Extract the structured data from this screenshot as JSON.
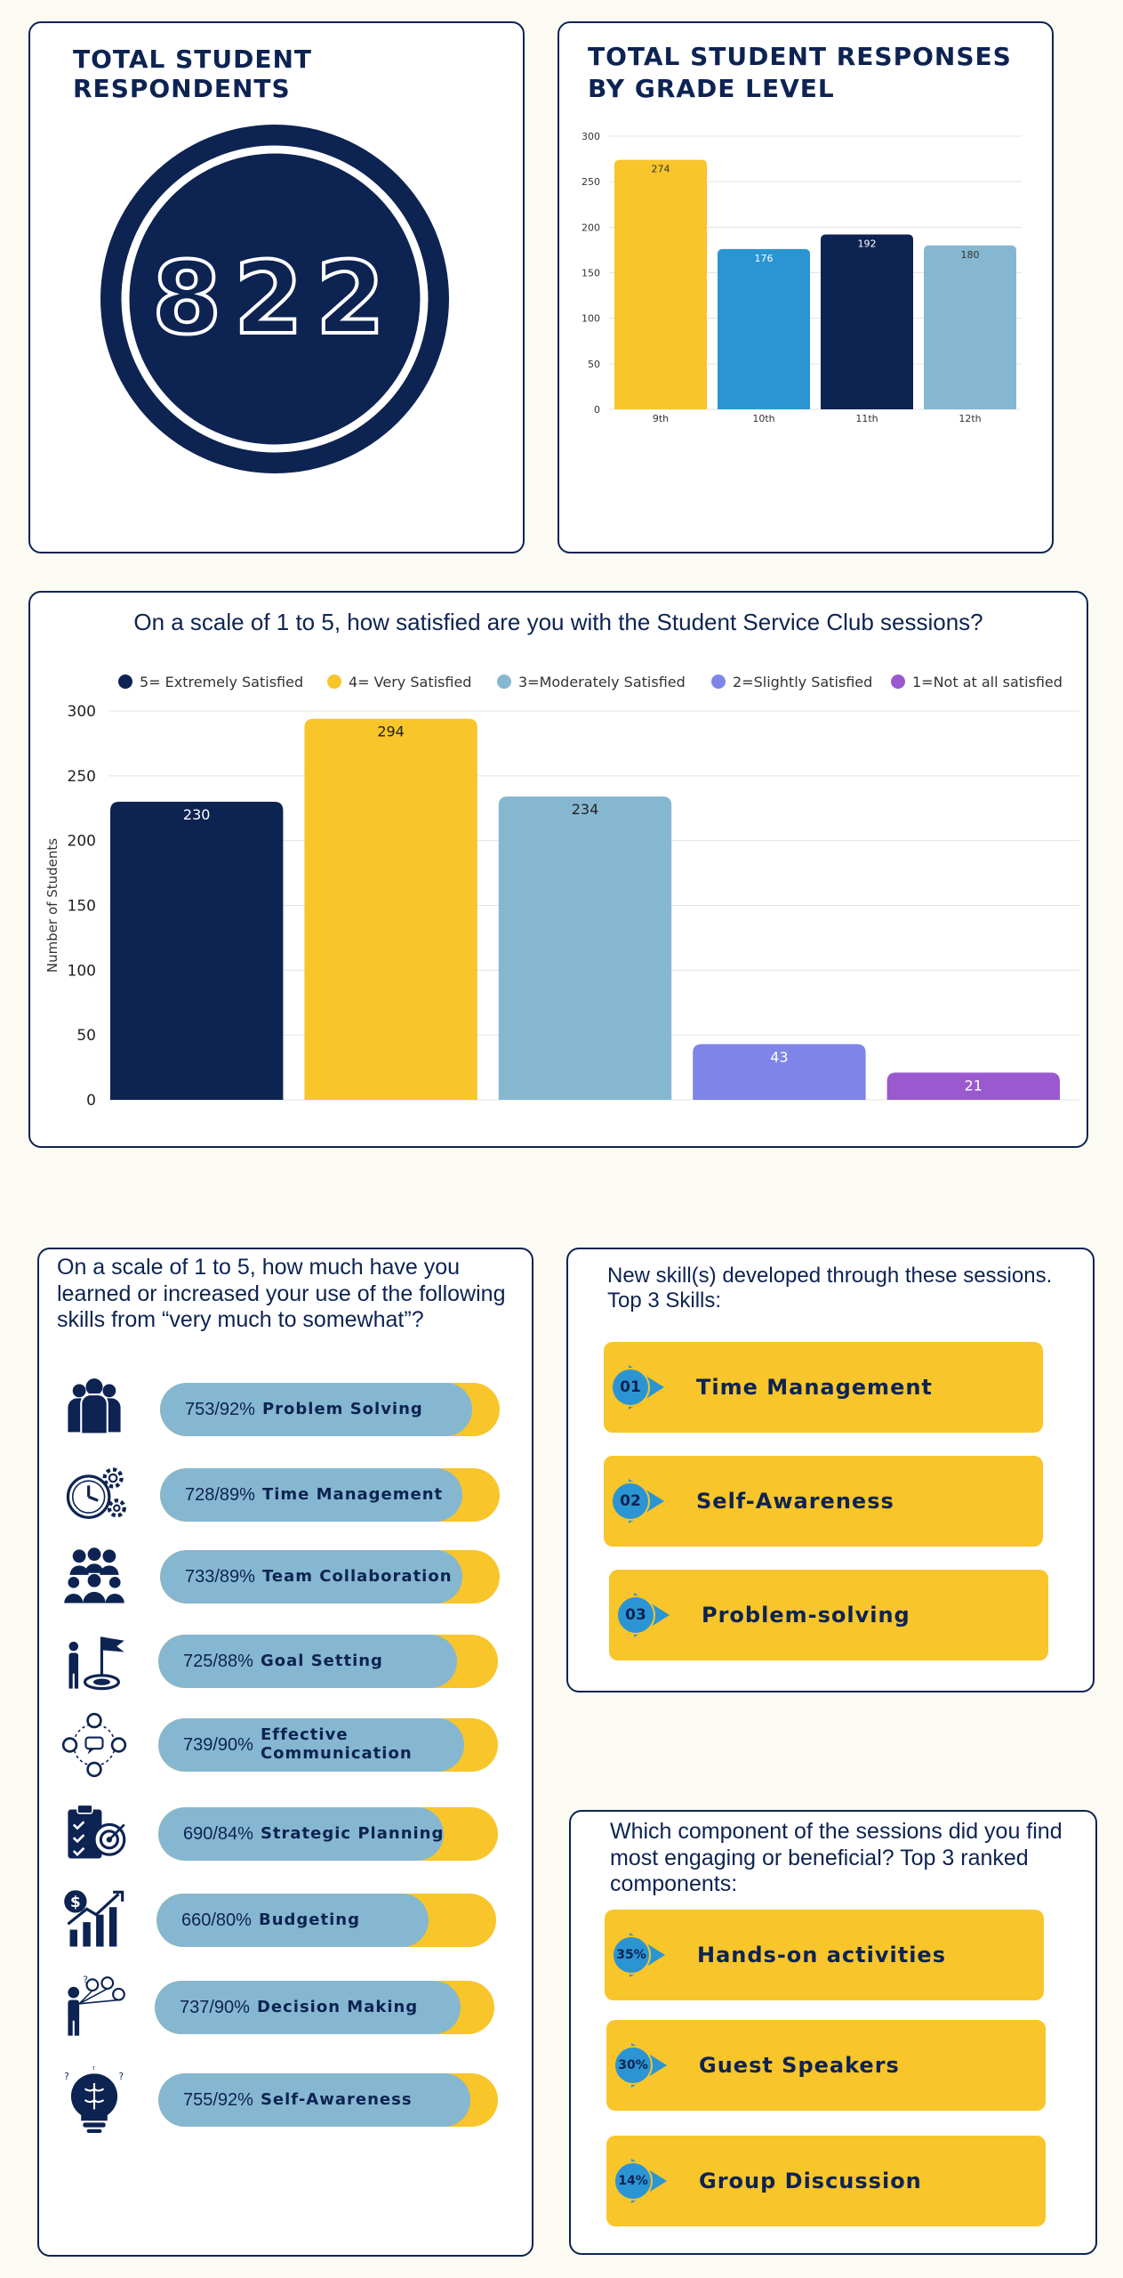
{
  "respondents": {
    "title": "TOTAL STUDENT RESPONDENTS",
    "total": "822"
  },
  "chart_data": [
    {
      "type": "bar",
      "title": "TOTAL STUDENT RESPONSES BY GRADE LEVEL",
      "categories": [
        "9th",
        "10th",
        "11th",
        "12th"
      ],
      "values": [
        274,
        176,
        192,
        180
      ],
      "colors": [
        "#f8c52a",
        "#2b95d3",
        "#0d2352",
        "#86b7d0"
      ],
      "ylim": [
        0,
        300
      ],
      "yticks": [
        0,
        50,
        100,
        150,
        200,
        250,
        300
      ],
      "grid": true
    },
    {
      "type": "bar",
      "title": "On a scale of 1 to 5, how satisfied are you with the Student Service Club sessions?",
      "ylabel": "Number of Students",
      "legend_position": "top",
      "categories": [
        "5= Extremely Satisfied",
        "4= Very Satisfied",
        "3=Moderately Satisfied",
        "2=Slightly Satisfied",
        "1=Not at all satisfied"
      ],
      "values": [
        230,
        294,
        234,
        43,
        21
      ],
      "colors": [
        "#0d2352",
        "#f8c52a",
        "#86b7d0",
        "#7f84e8",
        "#9b59d0"
      ],
      "ylim": [
        0,
        300
      ],
      "yticks": [
        0,
        50,
        100,
        150,
        200,
        250,
        300
      ],
      "grid": true
    }
  ],
  "skills": {
    "question": "On a scale of 1 to 5, how much have you learned or increased your use of the following skills from “very much to somewhat”?",
    "items": [
      {
        "value": "753/92%",
        "label": "Problem Solving",
        "pct": 0.92,
        "icon": "team-icon"
      },
      {
        "value": "728/89%",
        "label": "Time Management",
        "pct": 0.89,
        "icon": "clock-gears-icon"
      },
      {
        "value": "733/89%",
        "label": "Team Collaboration",
        "pct": 0.89,
        "icon": "group-icon"
      },
      {
        "value": "725/88%",
        "label": "Goal Setting",
        "pct": 0.88,
        "icon": "flag-target-icon"
      },
      {
        "value": "739/90%",
        "label": "Effective Communication",
        "pct": 0.9,
        "icon": "network-icon"
      },
      {
        "value": "690/84%",
        "label": "Strategic Planning",
        "pct": 0.84,
        "icon": "clipboard-target-icon"
      },
      {
        "value": "660/80%",
        "label": "Budgeting",
        "pct": 0.8,
        "icon": "money-chart-icon"
      },
      {
        "value": "737/90%",
        "label": "Decision Making",
        "pct": 0.9,
        "icon": "person-balloons-icon"
      },
      {
        "value": "755/92%",
        "label": "Self-Awareness",
        "pct": 0.92,
        "icon": "brain-bulb-icon"
      }
    ]
  },
  "new_skills": {
    "heading": "New skill(s) developed through these sessions. Top 3 Skills:",
    "items": [
      {
        "badge": "01",
        "label": "Time Management"
      },
      {
        "badge": "02",
        "label": "Self-Awareness"
      },
      {
        "badge": "03",
        "label": "Problem-solving"
      }
    ]
  },
  "components": {
    "heading": "Which component of the sessions did you find most engaging or beneficial? Top 3 ranked components:",
    "items": [
      {
        "badge": "35%",
        "label": "Hands-on activities"
      },
      {
        "badge": "30%",
        "label": "Guest Speakers"
      },
      {
        "badge": "14%",
        "label": "Group Discussion"
      }
    ]
  },
  "colors": {
    "navy": "#0d2352",
    "yellow": "#f8c52a",
    "lightblue": "#86b7d0",
    "blue": "#2b95d3"
  }
}
